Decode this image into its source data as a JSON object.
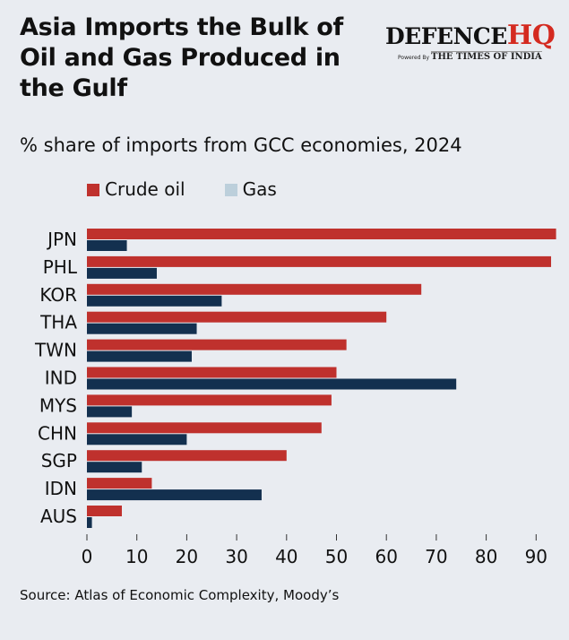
{
  "header": {
    "title": "Asia Imports the Bulk of Oil and Gas Produced in the Gulf",
    "logo_main": "DEFENCE",
    "logo_accent": "HQ",
    "logo_powered": "Powered By",
    "logo_sub": "THE TIMES OF INDIA"
  },
  "chart_data": {
    "type": "bar",
    "orientation": "horizontal",
    "title": "Asia Imports the Bulk of Oil and Gas Produced in the Gulf",
    "subtitle": "% share of imports from GCC economies, 2024",
    "categories": [
      "JPN",
      "PHL",
      "KOR",
      "THA",
      "TWN",
      "IND",
      "MYS",
      "CHN",
      "SGP",
      "IDN",
      "AUS"
    ],
    "series": [
      {
        "name": "Crude oil",
        "color": "#bf312d",
        "legend_color": "#bf312d",
        "values": [
          94,
          93,
          67,
          60,
          52,
          50,
          49,
          47,
          40,
          13,
          7
        ]
      },
      {
        "name": "Gas",
        "color": "#13304f",
        "legend_color": "#bccfdb",
        "values": [
          8,
          14,
          27,
          22,
          21,
          74,
          9,
          20,
          11,
          35,
          1
        ]
      }
    ],
    "xticks": [
      0,
      10,
      20,
      30,
      40,
      50,
      60,
      70,
      80,
      90
    ],
    "xlim": [
      0,
      95
    ],
    "xlabel": "",
    "ylabel": "",
    "legend": "top-left",
    "grid": false
  },
  "footer": {
    "source": "Source: Atlas of Economic Complexity, Moody’s"
  }
}
